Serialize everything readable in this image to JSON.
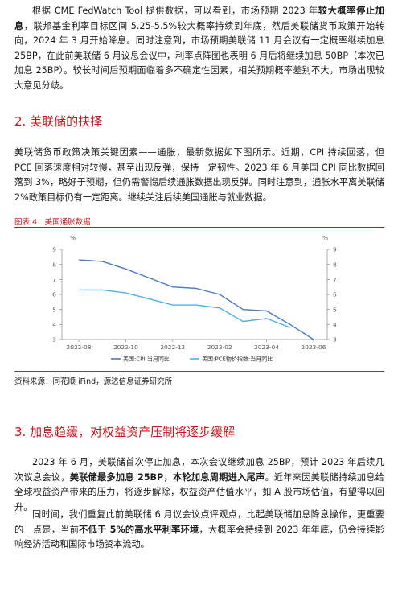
{
  "p1": {
    "s1": "根据 CME FedWatch Tool 提供数据，可以看到，市场预期 2023 年",
    "b1": "较大概率停止加息",
    "s2": "，联邦基金利率目标区间 5.25-5.5%较大概率持续到年底，然后美联储货币政策开始转向，2024 年 3 月开始降息。同时注意到，市场预期美联储 11 月会议有一定概率继续加息 25BP，在此前美联储 6 月议息会议中，利率点阵图也表明 6 月后将继续加息 50BP（本次已加息 25BP）。较长时间后预期面临着多不确定性因素，相关预期概率差别不大，市场出现较大意见分歧。"
  },
  "h2": "2. 美联储的抉择",
  "p2": "美联储货币政策决策关键因素——通胀，最新数据如下图所示。近期，CPI 持续回落，但 PCE 回落速度相对较慢，甚至出现反弹，保持一定韧性。2023 年 6 月美国 CPI 同比数据回落到 3%，略好于预期，但仍需警惕后续通胀数据出现反弹。同时注意到，通胀水平离美联储 2%政策目标仍有一定距离。继续关注后续美国通胀与就业数据。",
  "figure": {
    "title": "图表 4：美国通胀数据",
    "source": "资料来源：同花顺 iFind，源达信息证券研究所"
  },
  "h3": "3. 加息趋缓，对权益资产压制将逐步缓解",
  "p3": {
    "s1": "2023 年 6 月，美联储首次停止加息，本次会议继续加息 25BP，预计 2023 年后续几次议息会议，",
    "b1": "美联储最多加息 25BP，本轮加息周期进入尾声",
    "s2": "。近年来因美联储持续加息给全球权益资产带来的压力，将逐步解除，权益资产估值水平，如 A 股市场估值，有望得以回升。"
  },
  "p4": {
    "s1": "同时间，我们重复此前美联储 6 月议会议点评观点，比起美联储加息降息操作，更重要的一点是，当前",
    "b1": "不低于 5%的高水平利率环境",
    "s2": "，大概率会持续到 2023 年年底，仍会持续影响经济活动和国际市场资本流动。"
  },
  "chart_data": {
    "type": "line",
    "title": "",
    "xlabel": "",
    "ylabel_left": "%",
    "ylabel_right": "%",
    "ylim": [
      3,
      9
    ],
    "yticks": [
      3,
      4,
      5,
      6,
      7,
      8,
      9
    ],
    "x": [
      "2022-08",
      "2022-09",
      "2022-10",
      "2022-11",
      "2022-12",
      "2023-01",
      "2023-02",
      "2023-03",
      "2023-04",
      "2023-05",
      "2023-06"
    ],
    "xtick_labels": [
      "2022-08",
      "2022-10",
      "2022-12",
      "2023-02",
      "2023-04",
      "2023-06"
    ],
    "series": [
      {
        "name": "美国:CPI:当月同比",
        "color": "#4a7cc0",
        "values": [
          8.3,
          8.2,
          7.7,
          7.1,
          6.5,
          6.4,
          6.0,
          5.0,
          4.9,
          4.0,
          3.0
        ]
      },
      {
        "name": "美国:PCE物价指数:当月同比",
        "color": "#4fb0e6",
        "values": [
          6.3,
          6.3,
          6.1,
          5.7,
          5.3,
          5.3,
          5.1,
          4.2,
          4.4,
          3.8,
          null
        ]
      }
    ],
    "legend_position": "bottom",
    "grid": false
  }
}
